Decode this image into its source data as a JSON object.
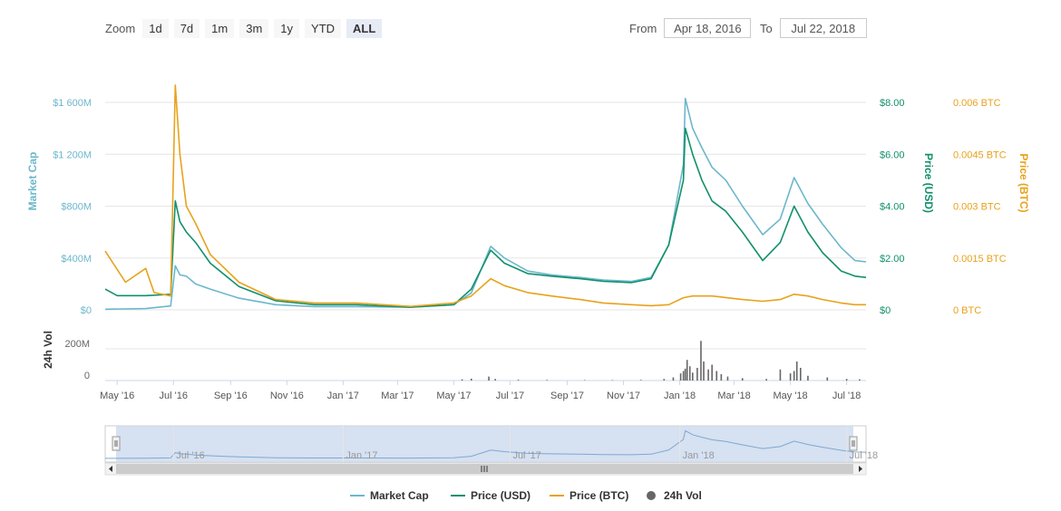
{
  "zoom": {
    "label": "Zoom",
    "buttons": [
      "1d",
      "7d",
      "1m",
      "3m",
      "1y",
      "YTD",
      "ALL"
    ],
    "active": "ALL"
  },
  "range": {
    "from_label": "From",
    "from_value": "Apr 18, 2016",
    "to_label": "To",
    "to_value": "Jul 22, 2018"
  },
  "colors": {
    "market_cap": "#6cb7cc",
    "price_usd": "#11906b",
    "price_btc": "#e8a21c",
    "volume": "#666666",
    "navigator_fill": "#cfdcef"
  },
  "chart_data": {
    "type": "line",
    "x_range": [
      "2016-04-18",
      "2018-07-22"
    ],
    "x_ticks": [
      {
        "date": "2016-05-01",
        "label": "May '16"
      },
      {
        "date": "2016-07-01",
        "label": "Jul '16"
      },
      {
        "date": "2016-09-01",
        "label": "Sep '16"
      },
      {
        "date": "2016-11-01",
        "label": "Nov '16"
      },
      {
        "date": "2017-01-01",
        "label": "Jan '17"
      },
      {
        "date": "2017-03-01",
        "label": "Mar '17"
      },
      {
        "date": "2017-05-01",
        "label": "May '17"
      },
      {
        "date": "2017-07-01",
        "label": "Jul '17"
      },
      {
        "date": "2017-09-01",
        "label": "Sep '17"
      },
      {
        "date": "2017-11-01",
        "label": "Nov '17"
      },
      {
        "date": "2018-01-01",
        "label": "Jan '18"
      },
      {
        "date": "2018-03-01",
        "label": "Mar '18"
      },
      {
        "date": "2018-05-01",
        "label": "May '18"
      },
      {
        "date": "2018-07-01",
        "label": "Jul '18"
      }
    ],
    "axes": {
      "market_cap": {
        "title": "Market Cap",
        "ylim": [
          0,
          1600
        ],
        "ticks": [
          0,
          400,
          800,
          1200,
          1600
        ],
        "tick_labels": [
          "$0",
          "$400M",
          "$800M",
          "$1 200M",
          "$1 600M"
        ]
      },
      "price_usd": {
        "title": "Price (USD)",
        "ylim": [
          0,
          8
        ],
        "ticks": [
          0,
          2,
          4,
          6,
          8
        ],
        "tick_labels": [
          "$0",
          "$2.00",
          "$4.00",
          "$6.00",
          "$8.00"
        ]
      },
      "price_btc": {
        "title": "Price (BTC)",
        "ylim": [
          0,
          0.006
        ],
        "ticks": [
          0,
          0.0015,
          0.003,
          0.0045,
          0.006
        ],
        "tick_labels": [
          "0 BTC",
          "0.0015 BTC",
          "0.003 BTC",
          "0.0045 BTC",
          "0.006 BTC"
        ]
      },
      "volume": {
        "title": "24h Vol",
        "ylim": [
          0,
          200
        ],
        "ticks": [
          0,
          200
        ],
        "tick_labels": [
          "0",
          "200M"
        ]
      }
    },
    "series": [
      {
        "name": "Market Cap",
        "axis": "market_cap",
        "points": [
          [
            "2016-04-18",
            5
          ],
          [
            "2016-06-01",
            10
          ],
          [
            "2016-06-28",
            30
          ],
          [
            "2016-07-03",
            340
          ],
          [
            "2016-07-08",
            270
          ],
          [
            "2016-07-15",
            260
          ],
          [
            "2016-07-25",
            200
          ],
          [
            "2016-08-10",
            160
          ],
          [
            "2016-09-10",
            90
          ],
          [
            "2016-10-20",
            40
          ],
          [
            "2016-12-01",
            25
          ],
          [
            "2017-01-15",
            25
          ],
          [
            "2017-03-15",
            20
          ],
          [
            "2017-05-01",
            40
          ],
          [
            "2017-05-20",
            130
          ],
          [
            "2017-06-10",
            490
          ],
          [
            "2017-06-25",
            400
          ],
          [
            "2017-07-20",
            300
          ],
          [
            "2017-08-15",
            270
          ],
          [
            "2017-09-15",
            250
          ],
          [
            "2017-10-10",
            230
          ],
          [
            "2017-11-10",
            220
          ],
          [
            "2017-12-01",
            250
          ],
          [
            "2017-12-20",
            500
          ],
          [
            "2018-01-05",
            1120
          ],
          [
            "2018-01-07",
            1630
          ],
          [
            "2018-01-15",
            1400
          ],
          [
            "2018-01-25",
            1250
          ],
          [
            "2018-02-05",
            1100
          ],
          [
            "2018-02-20",
            1000
          ],
          [
            "2018-03-10",
            800
          ],
          [
            "2018-04-01",
            580
          ],
          [
            "2018-04-20",
            700
          ],
          [
            "2018-05-05",
            1020
          ],
          [
            "2018-05-20",
            820
          ],
          [
            "2018-06-05",
            660
          ],
          [
            "2018-06-25",
            480
          ],
          [
            "2018-07-10",
            380
          ],
          [
            "2018-07-22",
            370
          ]
        ]
      },
      {
        "name": "Price (USD)",
        "axis": "price_usd",
        "points": [
          [
            "2016-04-18",
            0.8
          ],
          [
            "2016-05-01",
            0.55
          ],
          [
            "2016-06-01",
            0.55
          ],
          [
            "2016-06-28",
            0.6
          ],
          [
            "2016-07-03",
            4.2
          ],
          [
            "2016-07-08",
            3.4
          ],
          [
            "2016-07-15",
            3.0
          ],
          [
            "2016-07-25",
            2.6
          ],
          [
            "2016-08-10",
            1.8
          ],
          [
            "2016-09-10",
            0.9
          ],
          [
            "2016-10-20",
            0.35
          ],
          [
            "2016-12-01",
            0.2
          ],
          [
            "2017-01-15",
            0.2
          ],
          [
            "2017-03-15",
            0.1
          ],
          [
            "2017-05-01",
            0.2
          ],
          [
            "2017-05-20",
            0.8
          ],
          [
            "2017-06-10",
            2.3
          ],
          [
            "2017-06-25",
            1.8
          ],
          [
            "2017-07-20",
            1.4
          ],
          [
            "2017-08-15",
            1.3
          ],
          [
            "2017-09-15",
            1.2
          ],
          [
            "2017-10-10",
            1.1
          ],
          [
            "2017-11-10",
            1.05
          ],
          [
            "2017-12-01",
            1.2
          ],
          [
            "2017-12-20",
            2.5
          ],
          [
            "2018-01-05",
            5.0
          ],
          [
            "2018-01-07",
            7.0
          ],
          [
            "2018-01-15",
            6.0
          ],
          [
            "2018-01-25",
            5.0
          ],
          [
            "2018-02-05",
            4.2
          ],
          [
            "2018-02-20",
            3.8
          ],
          [
            "2018-03-10",
            3.0
          ],
          [
            "2018-04-01",
            1.9
          ],
          [
            "2018-04-20",
            2.6
          ],
          [
            "2018-05-05",
            4.0
          ],
          [
            "2018-05-20",
            3.0
          ],
          [
            "2018-06-05",
            2.2
          ],
          [
            "2018-06-25",
            1.5
          ],
          [
            "2018-07-10",
            1.3
          ],
          [
            "2018-07-22",
            1.25
          ]
        ]
      },
      {
        "name": "Price (BTC)",
        "axis": "price_btc",
        "points": [
          [
            "2016-04-18",
            0.0017
          ],
          [
            "2016-05-10",
            0.0008
          ],
          [
            "2016-06-01",
            0.0012
          ],
          [
            "2016-06-10",
            0.0005
          ],
          [
            "2016-06-28",
            0.0004
          ],
          [
            "2016-07-03",
            0.0065
          ],
          [
            "2016-07-08",
            0.0045
          ],
          [
            "2016-07-15",
            0.003
          ],
          [
            "2016-07-25",
            0.0025
          ],
          [
            "2016-08-10",
            0.0016
          ],
          [
            "2016-09-10",
            0.0008
          ],
          [
            "2016-10-20",
            0.0003
          ],
          [
            "2016-12-01",
            0.0002
          ],
          [
            "2017-01-15",
            0.0002
          ],
          [
            "2017-03-15",
            0.0001
          ],
          [
            "2017-05-01",
            0.0002
          ],
          [
            "2017-05-20",
            0.0004
          ],
          [
            "2017-06-10",
            0.0009
          ],
          [
            "2017-06-25",
            0.0007
          ],
          [
            "2017-07-20",
            0.0005
          ],
          [
            "2017-08-15",
            0.0004
          ],
          [
            "2017-09-15",
            0.0003
          ],
          [
            "2017-10-10",
            0.0002
          ],
          [
            "2017-11-10",
            0.00015
          ],
          [
            "2017-12-01",
            0.00012
          ],
          [
            "2017-12-20",
            0.00015
          ],
          [
            "2018-01-05",
            0.00035
          ],
          [
            "2018-01-15",
            0.0004
          ],
          [
            "2018-02-05",
            0.0004
          ],
          [
            "2018-03-10",
            0.0003
          ],
          [
            "2018-04-01",
            0.00025
          ],
          [
            "2018-04-20",
            0.0003
          ],
          [
            "2018-05-05",
            0.00045
          ],
          [
            "2018-05-20",
            0.0004
          ],
          [
            "2018-06-05",
            0.0003
          ],
          [
            "2018-06-25",
            0.0002
          ],
          [
            "2018-07-10",
            0.00015
          ],
          [
            "2018-07-22",
            0.00015
          ]
        ]
      },
      {
        "name": "24h Vol",
        "axis": "volume",
        "type": "bar",
        "points": [
          [
            "2017-05-10",
            8
          ],
          [
            "2017-05-20",
            12
          ],
          [
            "2017-06-08",
            25
          ],
          [
            "2017-06-15",
            10
          ],
          [
            "2017-07-10",
            5
          ],
          [
            "2017-08-10",
            4
          ],
          [
            "2017-09-20",
            3
          ],
          [
            "2017-10-20",
            3
          ],
          [
            "2017-11-20",
            4
          ],
          [
            "2017-12-15",
            10
          ],
          [
            "2017-12-25",
            20
          ],
          [
            "2018-01-02",
            45
          ],
          [
            "2018-01-05",
            60
          ],
          [
            "2018-01-07",
            75
          ],
          [
            "2018-01-09",
            130
          ],
          [
            "2018-01-12",
            90
          ],
          [
            "2018-01-15",
            50
          ],
          [
            "2018-01-20",
            80
          ],
          [
            "2018-01-24",
            250
          ],
          [
            "2018-01-27",
            120
          ],
          [
            "2018-02-01",
            70
          ],
          [
            "2018-02-05",
            100
          ],
          [
            "2018-02-10",
            60
          ],
          [
            "2018-02-15",
            40
          ],
          [
            "2018-02-22",
            25
          ],
          [
            "2018-03-10",
            15
          ],
          [
            "2018-04-05",
            10
          ],
          [
            "2018-04-20",
            70
          ],
          [
            "2018-05-01",
            45
          ],
          [
            "2018-05-05",
            60
          ],
          [
            "2018-05-08",
            120
          ],
          [
            "2018-05-12",
            80
          ],
          [
            "2018-05-20",
            30
          ],
          [
            "2018-06-10",
            20
          ],
          [
            "2018-07-01",
            10
          ],
          [
            "2018-07-15",
            8
          ]
        ]
      }
    ],
    "navigator": {
      "x_ticks": [
        "Jul '16",
        "Jan '18",
        "Jul '18"
      ],
      "extra_ticks": [
        "Jan '17",
        "Jul '17"
      ]
    },
    "legend": {
      "position": "bottom",
      "items": [
        "Market Cap",
        "Price (USD)",
        "Price (BTC)",
        "24h Vol"
      ]
    },
    "grid": true
  }
}
